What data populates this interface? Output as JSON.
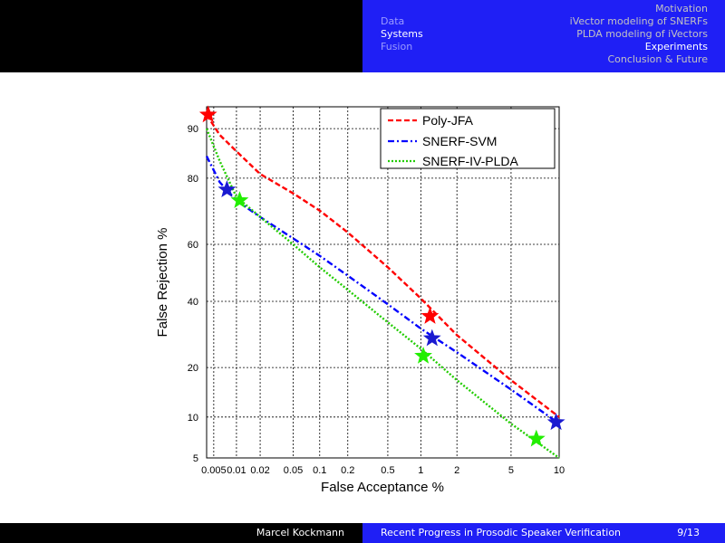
{
  "header": {
    "left_items": [
      {
        "label": "Motivation",
        "active": false
      },
      {
        "label": "iVector modeling of SNERFs",
        "active": false
      },
      {
        "label": "PLDA modeling of iVectors",
        "active": false
      },
      {
        "label": "Experiments",
        "active": true
      },
      {
        "label": "Conclusion & Future",
        "active": false
      }
    ],
    "right_items": [
      {
        "label": "Data",
        "active": false
      },
      {
        "label": "Systems",
        "active": true
      },
      {
        "label": "Fusion",
        "active": false
      }
    ]
  },
  "footer": {
    "author": "Marcel Kockmann",
    "title": "Recent Progress in Prosodic Speaker Verification",
    "page": "9/13"
  },
  "chart_data": {
    "type": "line",
    "title": "",
    "xlabel": "False Acceptance %",
    "ylabel": "False Rejection %",
    "x_scale": "normal-deviate (probit)",
    "y_scale": "normal-deviate (probit)",
    "grid": true,
    "legend_position": "top-right",
    "xlim": [
      0.004,
      10
    ],
    "ylim": [
      5,
      93
    ],
    "x_ticks": [
      0.005,
      0.01,
      0.02,
      0.05,
      0.1,
      0.2,
      0.5,
      1,
      2,
      5,
      10
    ],
    "x_tick_labels": [
      "0.005",
      "0.01",
      "0.02",
      "0.05",
      "0.1",
      "0.2",
      "0.5",
      "1",
      "2",
      "5",
      "10"
    ],
    "y_ticks": [
      5,
      10,
      20,
      40,
      60,
      80,
      90
    ],
    "y_tick_labels": [
      "5",
      "10",
      "20",
      "40",
      "60",
      "80",
      "90"
    ],
    "series": [
      {
        "name": "Poly-JFA",
        "color": "#ff0000",
        "dash": "dashed",
        "points": [
          [
            0.004,
            92
          ],
          [
            0.006,
            89
          ],
          [
            0.01,
            86
          ],
          [
            0.02,
            81
          ],
          [
            0.05,
            76
          ],
          [
            0.1,
            71
          ],
          [
            0.2,
            64
          ],
          [
            0.5,
            52
          ],
          [
            1,
            41
          ],
          [
            2,
            29
          ],
          [
            5,
            17
          ],
          [
            10,
            10
          ]
        ],
        "markers": [
          [
            0.0042,
            92
          ],
          [
            1.2,
            35
          ]
        ],
        "marker_color": "#ff0000"
      },
      {
        "name": "SNERF-SVM",
        "color": "#0000ff",
        "dash": "dashdot",
        "points": [
          [
            0.004,
            85
          ],
          [
            0.006,
            79
          ],
          [
            0.01,
            74
          ],
          [
            0.02,
            69
          ],
          [
            0.05,
            62
          ],
          [
            0.1,
            56
          ],
          [
            0.2,
            49
          ],
          [
            0.5,
            39
          ],
          [
            1,
            31
          ],
          [
            2,
            24
          ],
          [
            5,
            15
          ],
          [
            10,
            9
          ]
        ],
        "markers": [
          [
            0.0075,
            77
          ],
          [
            1.25,
            28
          ],
          [
            9.6,
            9.2
          ]
        ],
        "marker_color": "#1a1ad0"
      },
      {
        "name": "SNERF-IV-PLDA",
        "color": "#22cc00",
        "dash": "dotted",
        "points": [
          [
            0.004,
            90
          ],
          [
            0.006,
            84
          ],
          [
            0.01,
            75
          ],
          [
            0.02,
            69
          ],
          [
            0.05,
            60
          ],
          [
            0.1,
            52
          ],
          [
            0.2,
            44
          ],
          [
            0.5,
            33
          ],
          [
            1,
            25
          ],
          [
            2,
            17
          ],
          [
            5,
            9
          ],
          [
            10,
            5
          ]
        ],
        "markers": [
          [
            0.011,
            74
          ],
          [
            1.05,
            23
          ],
          [
            7.3,
            7
          ]
        ],
        "marker_color": "#22ee00"
      }
    ]
  }
}
